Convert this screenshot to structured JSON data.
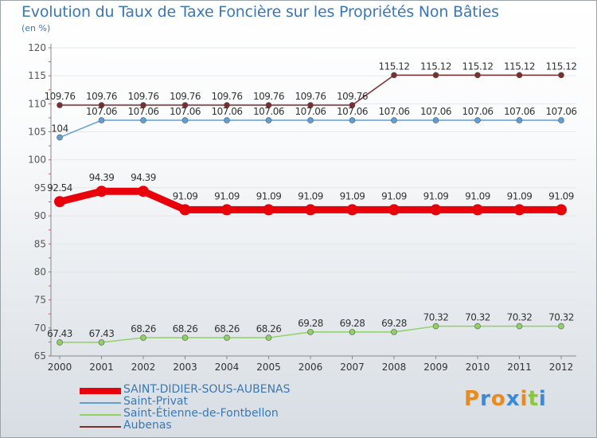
{
  "header": {
    "title": "Evolution du Taux de Taxe Foncière sur les Propriétés Non Bâties",
    "unit": "(en %)"
  },
  "chart_data": {
    "type": "line",
    "title": "Evolution du Taux de Taxe Foncière sur les Propriétés Non Bâties",
    "ylabel": "(en %)",
    "xlabel": "",
    "categories": [
      "2000",
      "2001",
      "2002",
      "2003",
      "2004",
      "2005",
      "2006",
      "2007",
      "2008",
      "2009",
      "2010",
      "2011",
      "2012"
    ],
    "ylim": [
      65,
      120
    ],
    "yticks": [
      65,
      70,
      75,
      80,
      85,
      90,
      95,
      100,
      105,
      110,
      115,
      120
    ],
    "series": [
      {
        "name": "SAINT-DIDIER-SOUS-AUBENAS",
        "color": "#e8000b",
        "values": [
          92.54,
          94.39,
          94.39,
          91.09,
          91.09,
          91.09,
          91.09,
          91.09,
          91.09,
          91.09,
          91.09,
          91.09,
          91.09
        ],
        "labels": [
          "92.54",
          "94.39",
          "94.39",
          "91.09",
          "91.09",
          "91.09",
          "91.09",
          "91.09",
          "91.09",
          "91.09",
          "91.09",
          "91.09",
          "91.09"
        ]
      },
      {
        "name": "Saint-Privat",
        "color": "#5d9fd6",
        "values": [
          104,
          107.06,
          107.06,
          107.06,
          107.06,
          107.06,
          107.06,
          107.06,
          107.06,
          107.06,
          107.06,
          107.06,
          107.06
        ],
        "labels": [
          "104",
          "107.06",
          "107.06",
          "107.06",
          "107.06",
          "107.06",
          "107.06",
          "107.06",
          "107.06",
          "107.06",
          "107.06",
          "107.06",
          "107.06"
        ]
      },
      {
        "name": "Saint-Étienne-de-Fontbellon",
        "color": "#8fd163",
        "values": [
          67.43,
          67.43,
          68.26,
          68.26,
          68.26,
          68.26,
          69.28,
          69.28,
          69.28,
          70.32,
          70.32,
          70.32,
          70.32
        ],
        "labels": [
          "67.43",
          "67.43",
          "68.26",
          "68.26",
          "68.26",
          "68.26",
          "69.28",
          "69.28",
          "69.28",
          "70.32",
          "70.32",
          "70.32",
          "70.32"
        ]
      },
      {
        "name": "Aubenas",
        "color": "#7a2e2e",
        "values": [
          109.76,
          109.76,
          109.76,
          109.76,
          109.76,
          109.76,
          109.76,
          109.76,
          115.12,
          115.12,
          115.12,
          115.12,
          115.12
        ],
        "labels": [
          "109.76",
          "109.76",
          "109.76",
          "109.76",
          "109.76",
          "109.76",
          "109.76",
          "109.76",
          "115.12",
          "115.12",
          "115.12",
          "115.12",
          "115.12"
        ]
      }
    ]
  },
  "legend": {
    "items": [
      {
        "label": "SAINT-DIDIER-SOUS-AUBENAS",
        "color": "#e8000b"
      },
      {
        "label": "Saint-Privat",
        "color": "#5d9fd6"
      },
      {
        "label": "Saint-Étienne-de-Fontbellon",
        "color": "#8fd163"
      },
      {
        "label": "Aubenas",
        "color": "#7a2e2e"
      }
    ]
  },
  "logo": {
    "letters": [
      "P",
      "r",
      "o",
      "x",
      "i",
      "t",
      "i"
    ],
    "colors": [
      "#e98b1c",
      "#3a8ad6",
      "#e98b1c",
      "#3a8ad6",
      "#e98b1c",
      "#8cc63f",
      "#3a8ad6"
    ]
  }
}
